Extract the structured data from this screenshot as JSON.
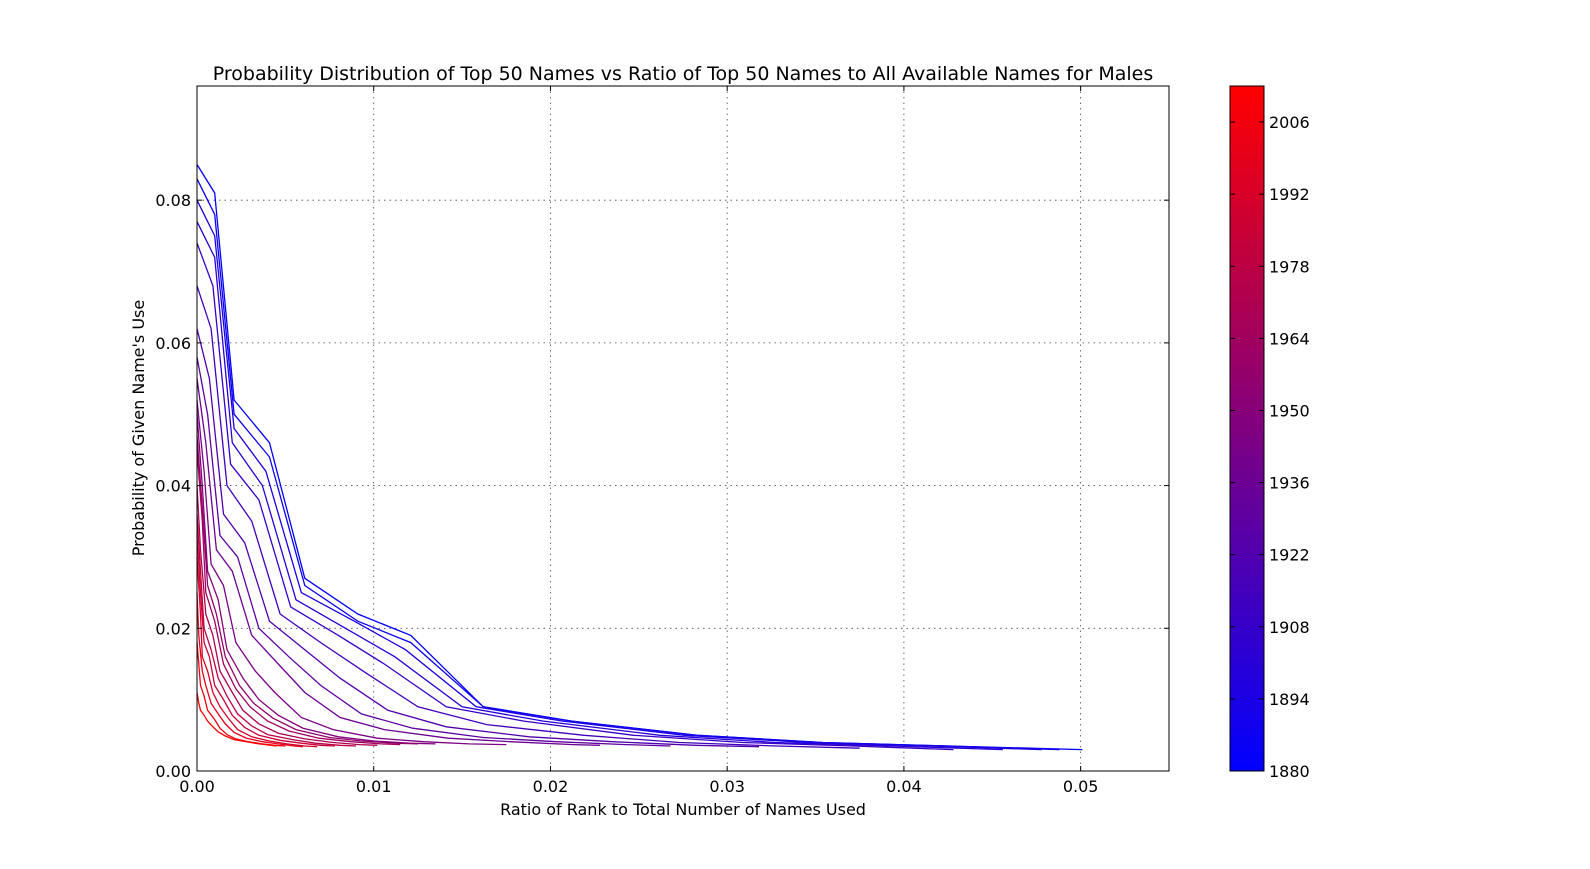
{
  "chart_data": {
    "type": "line",
    "title": "Probability Distribution of Top 50 Names vs Ratio of Top 50 Names to All Available Names for Males",
    "xlabel": "Ratio of Rank to Total Number of Names Used",
    "ylabel": "Probability of Given Name's Use",
    "xlim": [
      0.0,
      0.055
    ],
    "ylim": [
      0.0,
      0.096
    ],
    "x_ticks": [
      "0.00",
      "0.01",
      "0.02",
      "0.03",
      "0.04",
      "0.05"
    ],
    "y_ticks": [
      "0.00",
      "0.02",
      "0.04",
      "0.06",
      "0.08"
    ],
    "grid": true,
    "colorbar": {
      "range": [
        1880,
        2013
      ],
      "low_color": "#0000ff",
      "high_color": "#ff0000",
      "ticks": [
        "1880",
        "1894",
        "1908",
        "1922",
        "1936",
        "1950",
        "1964",
        "1978",
        "1992",
        "2006"
      ]
    },
    "series": [
      {
        "year": 1880,
        "x": [
          0.0,
          0.001,
          0.0021,
          0.0041,
          0.0061,
          0.0091,
          0.0121,
          0.0162,
          0.0212,
          0.0283,
          0.0354,
          0.0425,
          0.0501
        ],
        "y": [
          0.085,
          0.081,
          0.052,
          0.046,
          0.027,
          0.022,
          0.019,
          0.009,
          0.007,
          0.005,
          0.004,
          0.0035,
          0.003
        ]
      },
      {
        "year": 1887,
        "x": [
          0.0,
          0.001,
          0.0021,
          0.0041,
          0.0061,
          0.0091,
          0.0121,
          0.0162,
          0.0212,
          0.0283,
          0.0354,
          0.0425,
          0.0488
        ],
        "y": [
          0.083,
          0.078,
          0.05,
          0.044,
          0.026,
          0.021,
          0.018,
          0.009,
          0.007,
          0.005,
          0.004,
          0.0035,
          0.003
        ]
      },
      {
        "year": 1894,
        "x": [
          0.0,
          0.001,
          0.0021,
          0.0039,
          0.0059,
          0.0089,
          0.0118,
          0.0158,
          0.0207,
          0.0276,
          0.0345,
          0.0414,
          0.0478
        ],
        "y": [
          0.08,
          0.075,
          0.048,
          0.042,
          0.025,
          0.021,
          0.017,
          0.009,
          0.007,
          0.005,
          0.004,
          0.0035,
          0.003
        ]
      },
      {
        "year": 1901,
        "x": [
          0.0,
          0.001,
          0.002,
          0.0037,
          0.0056,
          0.0084,
          0.0112,
          0.015,
          0.0196,
          0.0262,
          0.0327,
          0.0393,
          0.0456
        ],
        "y": [
          0.077,
          0.072,
          0.046,
          0.04,
          0.024,
          0.02,
          0.016,
          0.009,
          0.007,
          0.005,
          0.004,
          0.0035,
          0.003
        ]
      },
      {
        "year": 1908,
        "x": [
          0.0,
          0.0009,
          0.0019,
          0.0035,
          0.0053,
          0.008,
          0.0106,
          0.0141,
          0.0185,
          0.0247,
          0.0309,
          0.0371,
          0.0428
        ],
        "y": [
          0.074,
          0.068,
          0.043,
          0.038,
          0.023,
          0.019,
          0.015,
          0.009,
          0.007,
          0.005,
          0.004,
          0.0035,
          0.003
        ]
      },
      {
        "year": 1915,
        "x": [
          0.0,
          0.0008,
          0.0017,
          0.0031,
          0.0047,
          0.007,
          0.0094,
          0.0125,
          0.0164,
          0.0219,
          0.0273,
          0.0328,
          0.0375
        ],
        "y": [
          0.068,
          0.062,
          0.04,
          0.035,
          0.022,
          0.018,
          0.014,
          0.009,
          0.0065,
          0.005,
          0.004,
          0.0035,
          0.0032
        ]
      },
      {
        "year": 1922,
        "x": [
          0.0,
          0.0007,
          0.0015,
          0.0027,
          0.0041,
          0.0061,
          0.0081,
          0.0108,
          0.0141,
          0.0188,
          0.0235,
          0.0282,
          0.0318
        ],
        "y": [
          0.062,
          0.055,
          0.036,
          0.032,
          0.021,
          0.017,
          0.013,
          0.0085,
          0.0062,
          0.0048,
          0.0041,
          0.0036,
          0.0034
        ]
      },
      {
        "year": 1929,
        "x": [
          0.0,
          0.0006,
          0.0013,
          0.0023,
          0.0035,
          0.0052,
          0.007,
          0.0093,
          0.0122,
          0.0162,
          0.0203,
          0.0243,
          0.0268
        ],
        "y": [
          0.058,
          0.05,
          0.033,
          0.03,
          0.02,
          0.016,
          0.012,
          0.008,
          0.006,
          0.0047,
          0.0041,
          0.0037,
          0.0035
        ]
      },
      {
        "year": 1936,
        "x": [
          0.0,
          0.0005,
          0.0011,
          0.002,
          0.0031,
          0.0046,
          0.0061,
          0.0081,
          0.0106,
          0.0142,
          0.0177,
          0.0213,
          0.0228
        ],
        "y": [
          0.055,
          0.046,
          0.031,
          0.028,
          0.019,
          0.015,
          0.011,
          0.0075,
          0.0058,
          0.0046,
          0.0041,
          0.0037,
          0.0036
        ]
      },
      {
        "year": 1943,
        "x": [
          0.0,
          0.0004,
          0.0008,
          0.0015,
          0.0022,
          0.0033,
          0.0044,
          0.0059,
          0.0077,
          0.0102,
          0.0128,
          0.0154,
          0.0175
        ],
        "y": [
          0.052,
          0.042,
          0.029,
          0.026,
          0.018,
          0.014,
          0.011,
          0.0075,
          0.0058,
          0.0046,
          0.0041,
          0.0038,
          0.0037
        ]
      },
      {
        "year": 1950,
        "x": [
          0.0,
          0.0003,
          0.0006,
          0.0012,
          0.0017,
          0.0026,
          0.0035,
          0.0046,
          0.006,
          0.008,
          0.01,
          0.012,
          0.0135
        ],
        "y": [
          0.05,
          0.04,
          0.028,
          0.024,
          0.017,
          0.013,
          0.01,
          0.0078,
          0.006,
          0.0048,
          0.0042,
          0.0039,
          0.0038
        ]
      },
      {
        "year": 1957,
        "x": [
          0.0,
          0.0003,
          0.0006,
          0.0011,
          0.0016,
          0.0024,
          0.0032,
          0.0043,
          0.0056,
          0.0075,
          0.0093,
          0.0112,
          0.0125
        ],
        "y": [
          0.047,
          0.037,
          0.026,
          0.022,
          0.016,
          0.012,
          0.0095,
          0.0074,
          0.0058,
          0.0047,
          0.0042,
          0.0039,
          0.0038
        ]
      },
      {
        "year": 1964,
        "x": [
          0.0,
          0.0003,
          0.0005,
          0.001,
          0.0015,
          0.0022,
          0.003,
          0.004,
          0.0052,
          0.0069,
          0.0087,
          0.0104,
          0.0115
        ],
        "y": [
          0.045,
          0.035,
          0.025,
          0.021,
          0.015,
          0.0115,
          0.009,
          0.007,
          0.0056,
          0.0046,
          0.0041,
          0.0038,
          0.0037
        ]
      },
      {
        "year": 1971,
        "x": [
          0.0,
          0.0002,
          0.0005,
          0.0009,
          0.0013,
          0.002,
          0.0026,
          0.0035,
          0.0046,
          0.0061,
          0.0077,
          0.0092,
          0.0102
        ],
        "y": [
          0.04,
          0.031,
          0.022,
          0.019,
          0.014,
          0.011,
          0.0085,
          0.0066,
          0.0053,
          0.0045,
          0.004,
          0.0037,
          0.0036
        ]
      },
      {
        "year": 1978,
        "x": [
          0.0,
          0.0002,
          0.0004,
          0.0008,
          0.0012,
          0.0017,
          0.0023,
          0.0031,
          0.004,
          0.0054,
          0.0067,
          0.0081,
          0.009
        ],
        "y": [
          0.036,
          0.028,
          0.02,
          0.017,
          0.013,
          0.0105,
          0.008,
          0.0063,
          0.0051,
          0.0044,
          0.0039,
          0.0036,
          0.0035
        ]
      },
      {
        "year": 1985,
        "x": [
          0.0,
          0.0002,
          0.0004,
          0.0007,
          0.001,
          0.0015,
          0.002,
          0.0027,
          0.0035,
          0.0047,
          0.0059,
          0.007,
          0.0078
        ],
        "y": [
          0.033,
          0.025,
          0.018,
          0.016,
          0.012,
          0.01,
          0.0078,
          0.0061,
          0.005,
          0.0043,
          0.0039,
          0.0036,
          0.0035
        ]
      },
      {
        "year": 1992,
        "x": [
          0.0,
          0.0002,
          0.0003,
          0.0006,
          0.0009,
          0.0013,
          0.0018,
          0.0023,
          0.0031,
          0.0041,
          0.0051,
          0.0061,
          0.0068
        ],
        "y": [
          0.03,
          0.022,
          0.016,
          0.014,
          0.011,
          0.009,
          0.0073,
          0.0058,
          0.0048,
          0.0042,
          0.0038,
          0.0035,
          0.0034
        ]
      },
      {
        "year": 1999,
        "x": [
          0.0,
          0.0001,
          0.0003,
          0.0005,
          0.0008,
          0.0012,
          0.0016,
          0.0021,
          0.0028,
          0.0037,
          0.0046,
          0.0055,
          0.006
        ],
        "y": [
          0.025,
          0.019,
          0.014,
          0.012,
          0.0095,
          0.008,
          0.0066,
          0.0054,
          0.0046,
          0.0041,
          0.0038,
          0.0035,
          0.0034
        ]
      },
      {
        "year": 2006,
        "x": [
          0.0,
          0.0001,
          0.0002,
          0.0004,
          0.0006,
          0.001,
          0.0013,
          0.0017,
          0.0022,
          0.0029,
          0.0037,
          0.0044,
          0.005
        ],
        "y": [
          0.018,
          0.015,
          0.012,
          0.0105,
          0.0085,
          0.0072,
          0.006,
          0.0051,
          0.0045,
          0.0041,
          0.0038,
          0.0036,
          0.0035
        ]
      },
      {
        "year": 2013,
        "x": [
          0.0,
          0.0001,
          0.0002,
          0.0004,
          0.0006,
          0.0009,
          0.0012,
          0.0016,
          0.0021,
          0.0028,
          0.0035,
          0.0042,
          0.0045
        ],
        "y": [
          0.011,
          0.0095,
          0.0085,
          0.0078,
          0.007,
          0.0062,
          0.0055,
          0.0049,
          0.0044,
          0.0041,
          0.0038,
          0.0036,
          0.0035
        ]
      }
    ]
  }
}
